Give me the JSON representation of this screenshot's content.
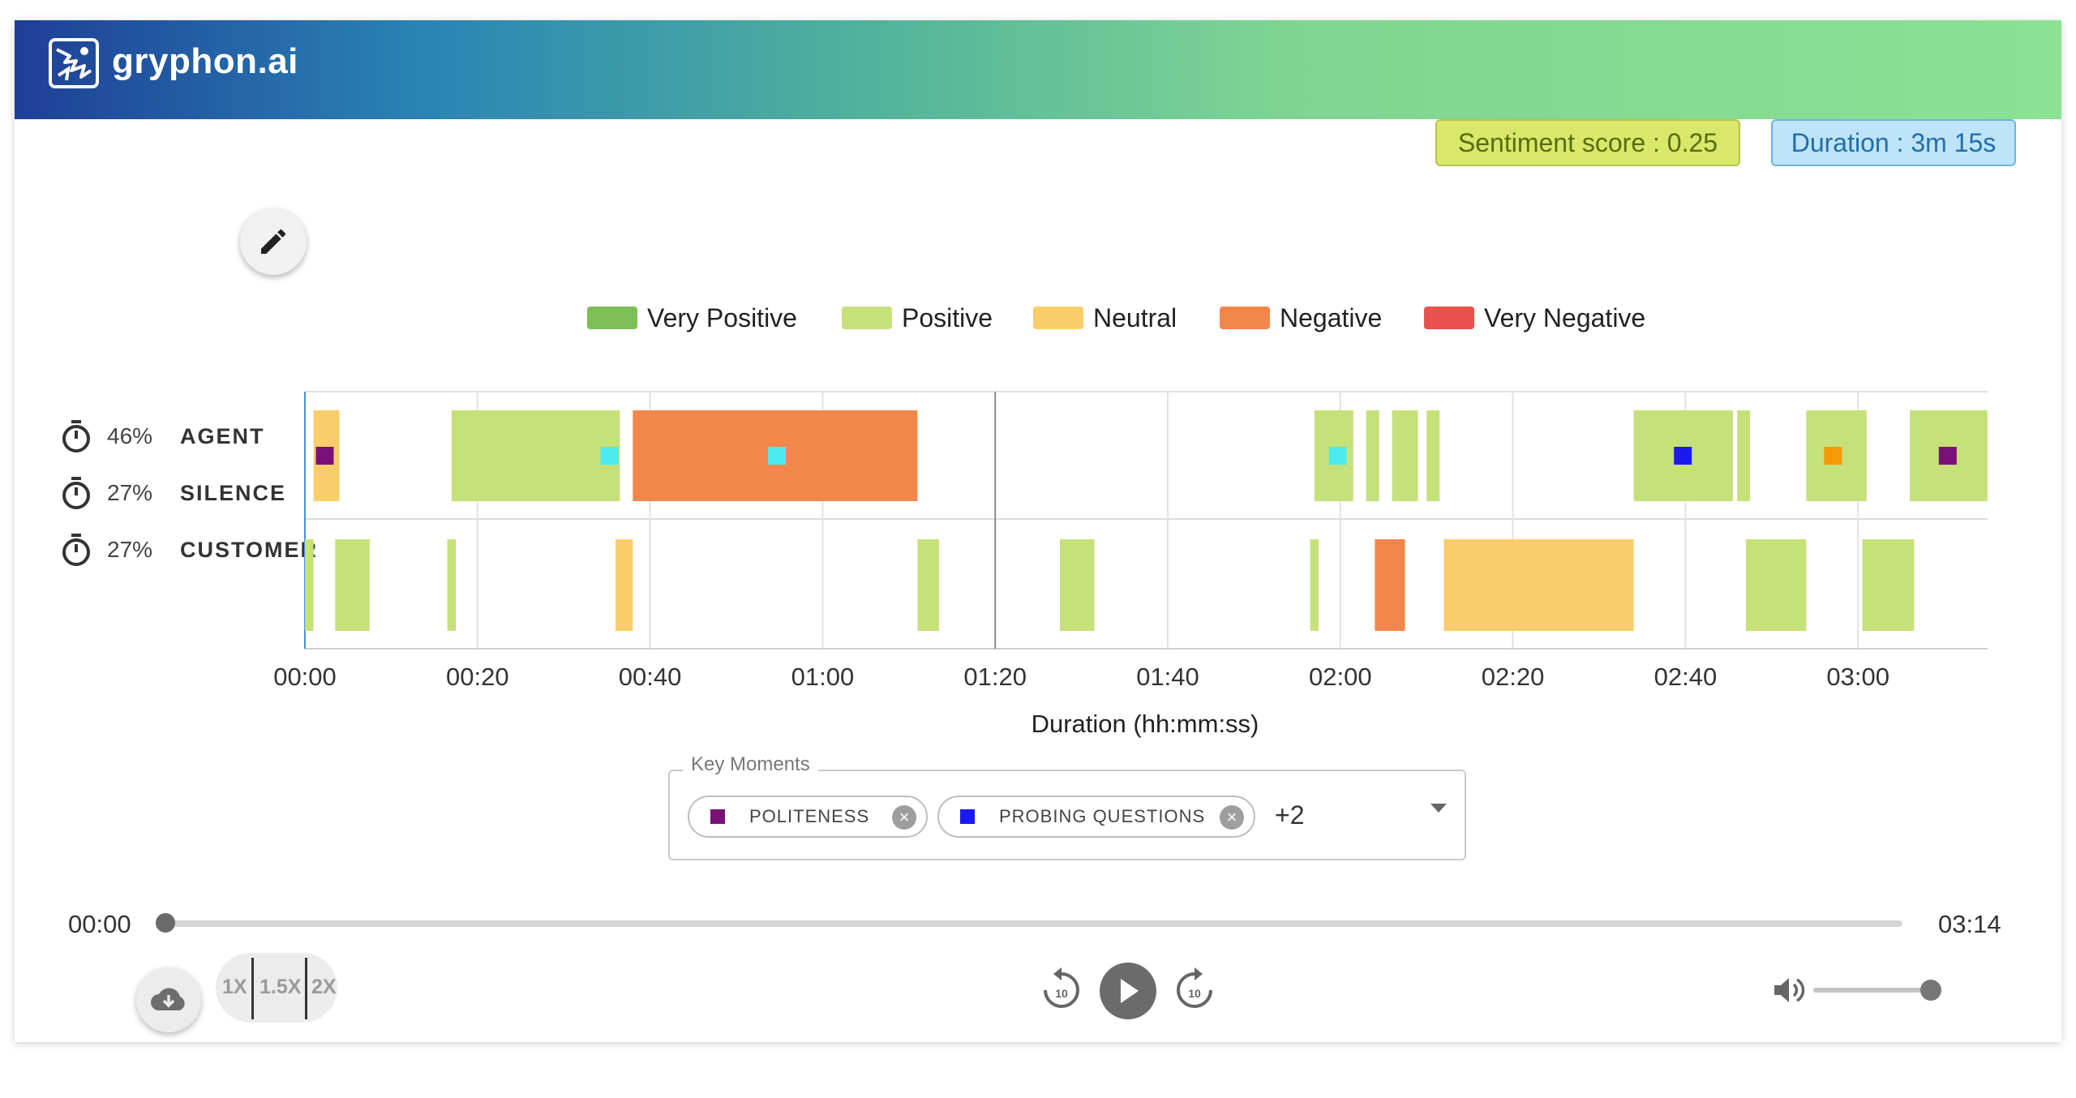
{
  "app": {
    "brand": "gryphon.ai"
  },
  "badges": {
    "sentiment": "Sentiment score : 0.25",
    "duration": "Duration : 3m 15s"
  },
  "legend": [
    {
      "label": "Very Positive",
      "color": "#7cbf55"
    },
    {
      "label": "Positive",
      "color": "#c6e07a"
    },
    {
      "label": "Neutral",
      "color": "#f8cd6a"
    },
    {
      "label": "Negative",
      "color": "#f3874b"
    },
    {
      "label": "Very Negative",
      "color": "#e8524a"
    }
  ],
  "rows": [
    {
      "pct": "46%",
      "name": "AGENT"
    },
    {
      "pct": "27%",
      "name": "SILENCE"
    },
    {
      "pct": "27%",
      "name": "CUSTOMER"
    }
  ],
  "chart_data": {
    "type": "timeline",
    "xlabel": "Duration (hh:mm:ss)",
    "ticks": [
      "00:00",
      "00:20",
      "00:40",
      "01:00",
      "01:20",
      "01:40",
      "02:00",
      "02:20",
      "02:40",
      "03:00"
    ],
    "x_range_seconds": [
      0,
      195
    ],
    "tick_step_seconds": 20,
    "grid": true,
    "agent_segments": [
      {
        "start": 1,
        "end": 4,
        "sentiment": "Neutral"
      },
      {
        "start": 17,
        "end": 36.5,
        "sentiment": "Positive"
      },
      {
        "start": 38,
        "end": 71,
        "sentiment": "Negative"
      },
      {
        "start": 117,
        "end": 121.5,
        "sentiment": "Positive"
      },
      {
        "start": 123,
        "end": 124.5,
        "sentiment": "Positive"
      },
      {
        "start": 126,
        "end": 129,
        "sentiment": "Positive"
      },
      {
        "start": 130,
        "end": 131.5,
        "sentiment": "Positive"
      },
      {
        "start": 154,
        "end": 165.5,
        "sentiment": "Positive"
      },
      {
        "start": 166,
        "end": 167.5,
        "sentiment": "Positive"
      },
      {
        "start": 174,
        "end": 181,
        "sentiment": "Positive"
      },
      {
        "start": 186,
        "end": 195,
        "sentiment": "Positive"
      }
    ],
    "customer_segments": [
      {
        "start": 0,
        "end": 1,
        "sentiment": "Positive"
      },
      {
        "start": 3.5,
        "end": 7.5,
        "sentiment": "Positive"
      },
      {
        "start": 16.5,
        "end": 17.5,
        "sentiment": "Positive"
      },
      {
        "start": 36,
        "end": 38,
        "sentiment": "Neutral"
      },
      {
        "start": 71,
        "end": 73.5,
        "sentiment": "Positive"
      },
      {
        "start": 87.5,
        "end": 91.5,
        "sentiment": "Positive"
      },
      {
        "start": 116.5,
        "end": 117.5,
        "sentiment": "Positive"
      },
      {
        "start": 124,
        "end": 127.5,
        "sentiment": "Negative"
      },
      {
        "start": 132,
        "end": 154,
        "sentiment": "Neutral"
      },
      {
        "start": 167,
        "end": 174,
        "sentiment": "Positive"
      },
      {
        "start": 180.5,
        "end": 186.5,
        "sentiment": "Positive"
      }
    ],
    "markers": [
      {
        "time": 2.3,
        "color": "#7a1177",
        "moment": "POLITENESS"
      },
      {
        "time": 35.3,
        "color": "#4deaf0"
      },
      {
        "time": 54.7,
        "color": "#4deaf0"
      },
      {
        "time": 119.7,
        "color": "#4deaf0"
      },
      {
        "time": 159.7,
        "color": "#1a19f0",
        "moment": "PROBING QUESTIONS"
      },
      {
        "time": 177.1,
        "color": "#f59a06"
      },
      {
        "time": 190.4,
        "color": "#7a1177",
        "moment": "POLITENESS"
      }
    ]
  },
  "key_moments": {
    "label": "Key Moments",
    "chips": [
      {
        "label": "POLITENESS",
        "color": "#7a1177"
      },
      {
        "label": "PROBING QUESTIONS",
        "color": "#1a19f0"
      }
    ],
    "more": "+2"
  },
  "player": {
    "current": "00:00",
    "total": "03:14",
    "progress": 0,
    "speeds": [
      "1X",
      "1.5X",
      "2X"
    ],
    "volume": 1.0
  }
}
